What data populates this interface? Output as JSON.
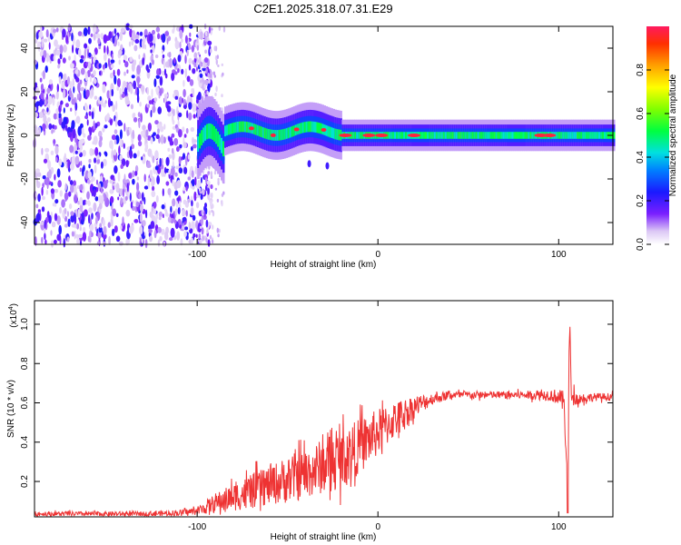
{
  "chart_data": [
    {
      "type": "heatmap",
      "title": "C2E1.2025.318.07.31.E29",
      "xlabel": "Height of straight line (km)",
      "ylabel": "Frequency (Hz)",
      "xlim": [
        -190,
        130
      ],
      "ylim": [
        -50,
        50
      ],
      "x_ticks": [
        -100,
        0,
        100
      ],
      "x_tick_labels": [
        "-100",
        "0",
        "100"
      ],
      "y_ticks": [
        -40,
        -20,
        0,
        20,
        40
      ],
      "y_tick_labels": [
        "-40",
        "-20",
        "0",
        "20",
        "40"
      ],
      "colorbar": {
        "label": "Normalized spectral amplitude",
        "range": [
          0.0,
          1.0
        ],
        "ticks": [
          0.0,
          0.2,
          0.4,
          0.6,
          0.8
        ],
        "tick_labels": [
          "0.0",
          "0.2",
          "0.4",
          "0.6",
          "0.8"
        ]
      },
      "description_regions": [
        {
          "x_range": [
            -190,
            -100
          ],
          "pattern": "broadband noise",
          "amplitude": 0.15
        },
        {
          "x_range": [
            -100,
            -20
          ],
          "pattern": "narrow band near 0 Hz, wavy",
          "amplitude": 0.45
        },
        {
          "x_range": [
            -20,
            130
          ],
          "pattern": "narrow band centered at 0 Hz",
          "amplitude": 0.6
        }
      ],
      "ridge_hotspots_x": [
        -70,
        -58,
        -45,
        -30,
        -18,
        -5,
        2,
        20,
        90,
        95
      ]
    },
    {
      "type": "line",
      "xlabel": "Height of straight line (km)",
      "ylabel": "SNR (10 * v/v)",
      "y_scale_label": "(x10^4)",
      "scale_base": "(x10",
      "scale_exp": "4",
      "scale_close": ")",
      "xlim": [
        -190,
        130
      ],
      "ylim": [
        0.02,
        1.12
      ],
      "x_ticks": [
        -100,
        0,
        100
      ],
      "x_tick_labels": [
        "-100",
        "0",
        "100"
      ],
      "y_ticks": [
        0.2,
        0.4,
        0.6,
        0.8,
        1.0
      ],
      "y_tick_labels": [
        "0.2",
        "0.4",
        "0.6",
        "0.8",
        "1.0"
      ],
      "series": [
        {
          "name": "SNR",
          "color": "#ee3333",
          "x": [
            -190,
            -160,
            -130,
            -110,
            -100,
            -90,
            -80,
            -70,
            -60,
            -50,
            -40,
            -30,
            -20,
            -10,
            0,
            10,
            20,
            30,
            40,
            60,
            80,
            95,
            100,
            103,
            105,
            106,
            107,
            110,
            120,
            130
          ],
          "mean": [
            0.035,
            0.035,
            0.035,
            0.04,
            0.05,
            0.09,
            0.12,
            0.15,
            0.18,
            0.21,
            0.24,
            0.28,
            0.32,
            0.38,
            0.45,
            0.52,
            0.58,
            0.62,
            0.64,
            0.64,
            0.64,
            0.64,
            0.63,
            0.6,
            0.2,
            0.95,
            0.66,
            0.62,
            0.63,
            0.63
          ],
          "noise": [
            0.012,
            0.012,
            0.012,
            0.015,
            0.02,
            0.05,
            0.07,
            0.09,
            0.1,
            0.12,
            0.13,
            0.14,
            0.15,
            0.14,
            0.12,
            0.09,
            0.06,
            0.03,
            0.02,
            0.02,
            0.02,
            0.03,
            0.04,
            0.06,
            0.1,
            0.1,
            0.05,
            0.03,
            0.02,
            0.02
          ]
        }
      ]
    }
  ],
  "colors": {
    "line": "#ee3333",
    "axis": "#000000",
    "background": "#ffffff"
  }
}
